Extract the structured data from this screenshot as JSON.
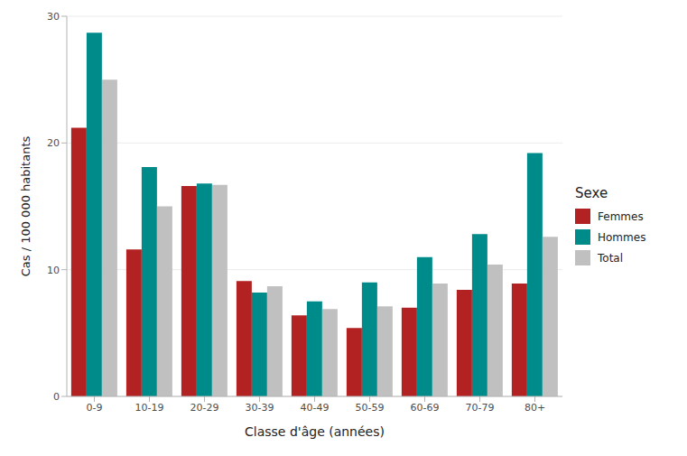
{
  "chart_data": {
    "type": "bar",
    "x_label": "Classe d'âge (années)",
    "y_label": "Cas / 100 000 habitants",
    "legend_title": "Sexe",
    "categories": [
      "0-9",
      "10-19",
      "20-29",
      "30-39",
      "40-49",
      "50-59",
      "60-69",
      "70-79",
      "80+"
    ],
    "series": [
      {
        "name": "Femmes",
        "color": "#b22222",
        "values": [
          21.2,
          11.6,
          16.6,
          9.1,
          6.4,
          5.4,
          7.0,
          8.4,
          8.9
        ]
      },
      {
        "name": "Hommes",
        "color": "#008b8b",
        "values": [
          28.7,
          18.1,
          16.8,
          8.2,
          7.5,
          9.0,
          11.0,
          12.8,
          19.2
        ]
      },
      {
        "name": "Total",
        "color": "#c0c0c0",
        "values": [
          25.0,
          15.0,
          16.7,
          8.7,
          6.9,
          7.1,
          8.9,
          10.4,
          12.6
        ]
      }
    ],
    "ylim": [
      0,
      30
    ],
    "yticks": [
      0,
      10,
      20,
      30
    ],
    "grid": true,
    "legend": "right"
  }
}
